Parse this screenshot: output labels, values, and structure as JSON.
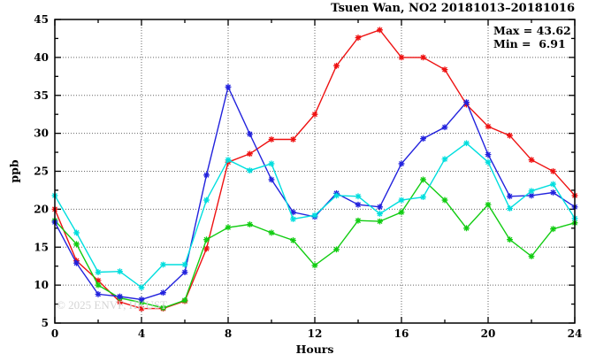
{
  "chart_data": {
    "type": "line",
    "title": "Tsuen Wan, NO2 20181013–20181016",
    "xlabel": "Hours",
    "ylabel": "ppb",
    "annotation_max": "Max = 43.62",
    "annotation_min": "Min =  6.91",
    "watermark": "© 2025 ENVF, HKUST",
    "xlim": [
      0,
      24
    ],
    "ylim": [
      5,
      45
    ],
    "x_ticks": [
      0,
      4,
      8,
      12,
      16,
      20,
      24
    ],
    "y_ticks": [
      5,
      10,
      15,
      20,
      25,
      30,
      35,
      40,
      45
    ],
    "x_minor_ticks": [
      2,
      6,
      10,
      14,
      18,
      22
    ],
    "y_minor_ticks": [
      7.5,
      12.5,
      17.5,
      22.5,
      27.5,
      32.5,
      37.5,
      42.5
    ],
    "x_grid": [
      4,
      8,
      12,
      16,
      20
    ],
    "y_grid": [
      10,
      15,
      20,
      25,
      30,
      35,
      40
    ],
    "grid": true,
    "legend_position": "none",
    "marker": "asterisk",
    "x": [
      0,
      1,
      2,
      3,
      4,
      5,
      6,
      7,
      8,
      9,
      10,
      11,
      12,
      13,
      14,
      15,
      16,
      17,
      18,
      19,
      20,
      21,
      22,
      23,
      24
    ],
    "series": [
      {
        "name": "series-red",
        "color": "#ee1111",
        "values": [
          20.0,
          13.2,
          10.6,
          7.8,
          6.91,
          6.91,
          7.9,
          14.8,
          26.2,
          27.3,
          29.2,
          29.2,
          32.5,
          38.9,
          42.6,
          43.62,
          40.0,
          40.0,
          38.4,
          33.8,
          30.9,
          29.7,
          26.5,
          25.0,
          21.8
        ]
      },
      {
        "name": "series-green",
        "color": "#11cc11",
        "values": [
          18.5,
          15.4,
          10.0,
          8.3,
          7.7,
          7.0,
          8.0,
          16.0,
          17.6,
          18.0,
          16.9,
          15.9,
          12.6,
          14.7,
          18.5,
          18.4,
          19.6,
          23.9,
          21.2,
          17.5,
          20.6,
          16.0,
          13.8,
          17.4,
          18.2
        ]
      },
      {
        "name": "series-blue",
        "color": "#2222dd",
        "values": [
          18.3,
          12.9,
          8.8,
          8.5,
          8.1,
          9.0,
          11.7,
          24.5,
          36.1,
          29.9,
          23.9,
          19.6,
          19.0,
          22.1,
          20.6,
          20.3,
          26.0,
          29.3,
          30.8,
          34.1,
          27.2,
          21.7,
          21.8,
          22.2,
          20.3
        ]
      },
      {
        "name": "series-cyan",
        "color": "#00dede",
        "values": [
          21.8,
          16.9,
          11.7,
          11.8,
          9.7,
          12.7,
          12.7,
          21.2,
          26.5,
          25.1,
          26.0,
          18.7,
          19.2,
          21.8,
          21.7,
          19.4,
          21.2,
          21.6,
          26.6,
          28.7,
          26.2,
          20.1,
          22.4,
          23.3,
          18.8
        ]
      }
    ]
  }
}
